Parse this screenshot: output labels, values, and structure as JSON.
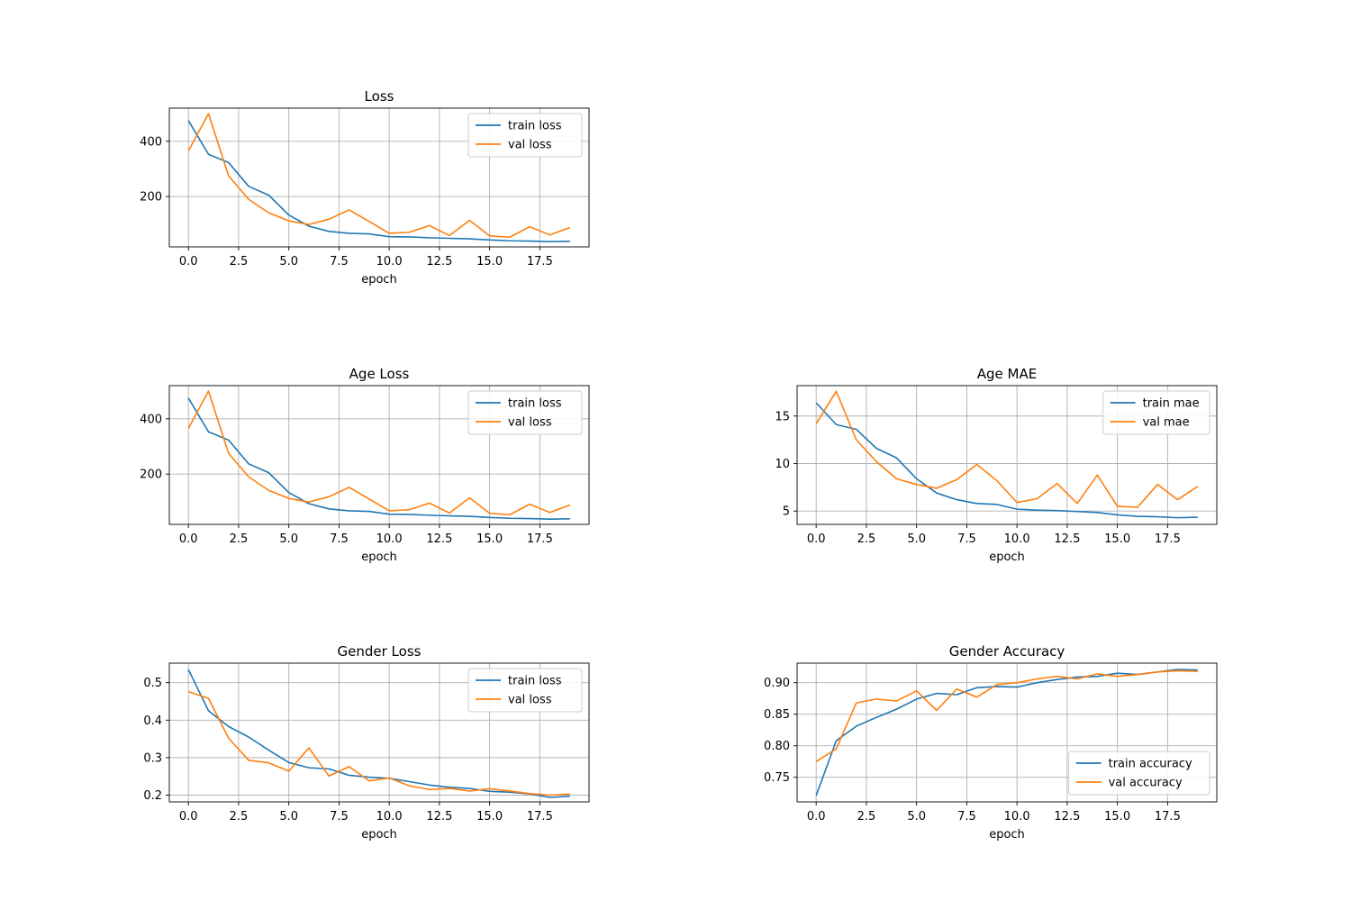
{
  "colors": {
    "train": "#1f77b4",
    "val": "#ff7f0e",
    "grid": "#b0b0b0"
  },
  "chart_data": [
    {
      "type": "line",
      "title": "Loss",
      "xlabel": "epoch",
      "ylabel": "",
      "grid": true,
      "legend_loc": "upper right",
      "xlim": [
        -0.95,
        19.95
      ],
      "ylim": [
        18,
        520
      ],
      "xticks": [
        0,
        2.5,
        5,
        7.5,
        10,
        12.5,
        15,
        17.5
      ],
      "xtick_labels": [
        "0.0",
        "2.5",
        "5.0",
        "7.5",
        "10.0",
        "12.5",
        "15.0",
        "17.5"
      ],
      "yticks": [
        200,
        400
      ],
      "ytick_labels": [
        "200",
        "400"
      ],
      "x": [
        0,
        1,
        2,
        3,
        4,
        5,
        6,
        7,
        8,
        9,
        10,
        11,
        12,
        13,
        14,
        15,
        16,
        17,
        18,
        19
      ],
      "series": [
        {
          "name": "train loss",
          "color": "#1f77b4",
          "values": [
            475,
            353,
            323,
            237,
            205,
            133,
            93,
            74,
            67,
            65,
            55,
            54,
            51,
            49,
            47,
            43,
            40,
            39,
            37,
            38
          ]
        },
        {
          "name": "val loss",
          "color": "#ff7f0e",
          "values": [
            365,
            500,
            275,
            190,
            141,
            112,
            99,
            118,
            152,
            110,
            67,
            71,
            95,
            59,
            114,
            58,
            53,
            91,
            61,
            88
          ]
        }
      ]
    },
    {
      "type": "line",
      "title": "Age Loss",
      "xlabel": "epoch",
      "ylabel": "",
      "grid": true,
      "legend_loc": "upper right",
      "xlim": [
        -0.95,
        19.95
      ],
      "ylim": [
        18,
        520
      ],
      "xticks": [
        0,
        2.5,
        5,
        7.5,
        10,
        12.5,
        15,
        17.5
      ],
      "xtick_labels": [
        "0.0",
        "2.5",
        "5.0",
        "7.5",
        "10.0",
        "12.5",
        "15.0",
        "17.5"
      ],
      "yticks": [
        200,
        400
      ],
      "ytick_labels": [
        "200",
        "400"
      ],
      "x": [
        0,
        1,
        2,
        3,
        4,
        5,
        6,
        7,
        8,
        9,
        10,
        11,
        12,
        13,
        14,
        15,
        16,
        17,
        18,
        19
      ],
      "series": [
        {
          "name": "train loss",
          "color": "#1f77b4",
          "values": [
            475,
            353,
            323,
            237,
            205,
            133,
            93,
            74,
            67,
            65,
            55,
            54,
            51,
            49,
            47,
            43,
            40,
            39,
            37,
            38
          ]
        },
        {
          "name": "val loss",
          "color": "#ff7f0e",
          "values": [
            365,
            500,
            275,
            190,
            141,
            112,
            99,
            118,
            152,
            110,
            67,
            71,
            95,
            59,
            114,
            58,
            53,
            91,
            61,
            88
          ]
        }
      ]
    },
    {
      "type": "line",
      "title": "Age MAE",
      "xlabel": "epoch",
      "ylabel": "",
      "grid": true,
      "legend_loc": "upper right",
      "xlim": [
        -0.95,
        19.95
      ],
      "ylim": [
        3.6,
        18.2
      ],
      "xticks": [
        0,
        2.5,
        5,
        7.5,
        10,
        12.5,
        15,
        17.5
      ],
      "xtick_labels": [
        "0.0",
        "2.5",
        "5.0",
        "7.5",
        "10.0",
        "12.5",
        "15.0",
        "17.5"
      ],
      "yticks": [
        5,
        10,
        15
      ],
      "ytick_labels": [
        "5",
        "10",
        "15"
      ],
      "x": [
        0,
        1,
        2,
        3,
        4,
        5,
        6,
        7,
        8,
        9,
        10,
        11,
        12,
        13,
        14,
        15,
        16,
        17,
        18,
        19
      ],
      "series": [
        {
          "name": "train mae",
          "color": "#1f77b4",
          "values": [
            16.4,
            14.1,
            13.6,
            11.6,
            10.6,
            8.4,
            6.9,
            6.2,
            5.8,
            5.7,
            5.2,
            5.1,
            5.05,
            4.95,
            4.85,
            4.6,
            4.45,
            4.4,
            4.3,
            4.35
          ]
        },
        {
          "name": "val mae",
          "color": "#ff7f0e",
          "values": [
            14.2,
            17.6,
            12.5,
            10.2,
            8.4,
            7.8,
            7.4,
            8.3,
            9.9,
            8.2,
            5.9,
            6.3,
            7.9,
            5.8,
            8.8,
            5.5,
            5.4,
            7.8,
            6.2,
            7.6
          ]
        }
      ]
    },
    {
      "type": "line",
      "title": "Gender Loss",
      "xlabel": "epoch",
      "ylabel": "",
      "grid": true,
      "legend_loc": "upper right",
      "xlim": [
        -0.95,
        19.95
      ],
      "ylim": [
        0.182,
        0.552
      ],
      "xticks": [
        0,
        2.5,
        5,
        7.5,
        10,
        12.5,
        15,
        17.5
      ],
      "xtick_labels": [
        "0.0",
        "2.5",
        "5.0",
        "7.5",
        "10.0",
        "12.5",
        "15.0",
        "17.5"
      ],
      "yticks": [
        0.2,
        0.3,
        0.4,
        0.5
      ],
      "ytick_labels": [
        "0.2",
        "0.3",
        "0.4",
        "0.5"
      ],
      "x": [
        0,
        1,
        2,
        3,
        4,
        5,
        6,
        7,
        8,
        9,
        10,
        11,
        12,
        13,
        14,
        15,
        16,
        17,
        18,
        19
      ],
      "series": [
        {
          "name": "train loss",
          "color": "#1f77b4",
          "values": [
            0.535,
            0.425,
            0.383,
            0.355,
            0.32,
            0.287,
            0.273,
            0.27,
            0.253,
            0.248,
            0.245,
            0.236,
            0.227,
            0.221,
            0.218,
            0.21,
            0.208,
            0.203,
            0.194,
            0.197
          ]
        },
        {
          "name": "val loss",
          "color": "#ff7f0e",
          "values": [
            0.476,
            0.458,
            0.352,
            0.293,
            0.286,
            0.264,
            0.326,
            0.251,
            0.276,
            0.238,
            0.246,
            0.225,
            0.215,
            0.218,
            0.211,
            0.217,
            0.211,
            0.204,
            0.2,
            0.203
          ]
        }
      ]
    },
    {
      "type": "line",
      "title": "Gender Accuracy",
      "xlabel": "epoch",
      "ylabel": "",
      "grid": true,
      "legend_loc": "lower right",
      "xlim": [
        -0.95,
        19.95
      ],
      "ylim": [
        0.711,
        0.931
      ],
      "xticks": [
        0,
        2.5,
        5,
        7.5,
        10,
        12.5,
        15,
        17.5
      ],
      "xtick_labels": [
        "0.0",
        "2.5",
        "5.0",
        "7.5",
        "10.0",
        "12.5",
        "15.0",
        "17.5"
      ],
      "yticks": [
        0.75,
        0.8,
        0.85,
        0.9
      ],
      "ytick_labels": [
        "0.75",
        "0.80",
        "0.85",
        "0.90"
      ],
      "x": [
        0,
        1,
        2,
        3,
        4,
        5,
        6,
        7,
        8,
        9,
        10,
        11,
        12,
        13,
        14,
        15,
        16,
        17,
        18,
        19
      ],
      "series": [
        {
          "name": "train accuracy",
          "color": "#1f77b4",
          "values": [
            0.721,
            0.808,
            0.831,
            0.845,
            0.858,
            0.874,
            0.883,
            0.881,
            0.892,
            0.894,
            0.893,
            0.9,
            0.905,
            0.909,
            0.91,
            0.915,
            0.913,
            0.917,
            0.921,
            0.92
          ]
        },
        {
          "name": "val accuracy",
          "color": "#ff7f0e",
          "values": [
            0.775,
            0.795,
            0.868,
            0.874,
            0.871,
            0.887,
            0.856,
            0.89,
            0.877,
            0.897,
            0.9,
            0.906,
            0.91,
            0.906,
            0.914,
            0.91,
            0.913,
            0.917,
            0.919,
            0.918
          ]
        }
      ]
    }
  ]
}
